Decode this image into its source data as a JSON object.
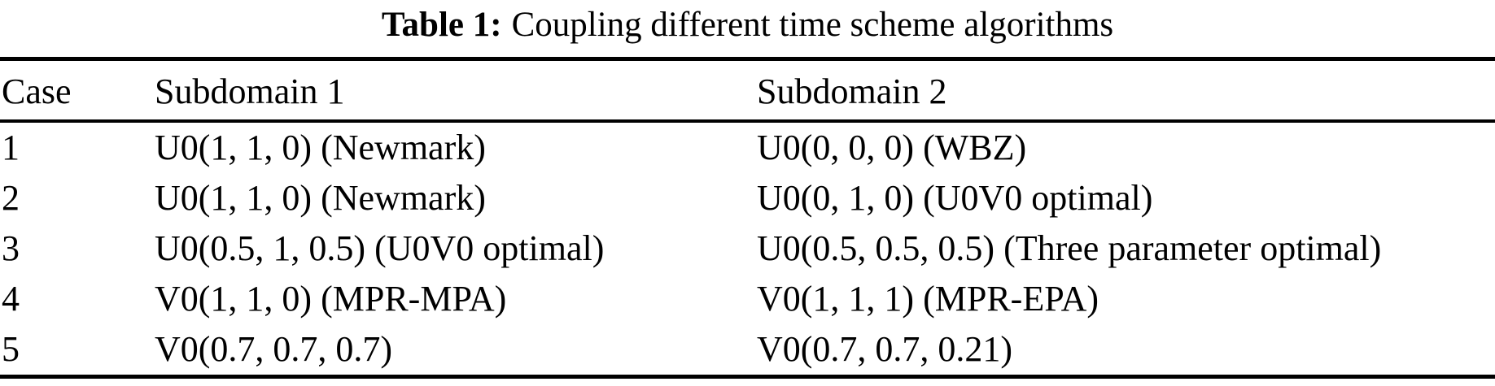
{
  "page": {
    "background_color": "#ffffff",
    "text_color": "#000000",
    "rule_color": "#000000"
  },
  "caption": {
    "label": "Table 1:",
    "text": "Coupling different time scheme algorithms"
  },
  "table": {
    "headers": [
      "Case",
      "Subdomain 1",
      "Subdomain 2"
    ],
    "rows": [
      [
        "1",
        "U0(1, 1, 0) (Newmark)",
        "U0(0, 0, 0) (WBZ)"
      ],
      [
        "2",
        "U0(1, 1, 0) (Newmark)",
        "U0(0, 1, 0) (U0V0 optimal)"
      ],
      [
        "3",
        "U0(0.5, 1, 0.5) (U0V0 optimal)",
        "U0(0.5, 0.5, 0.5) (Three parameter optimal)"
      ],
      [
        "4",
        "V0(1, 1, 0) (MPR-MPA)",
        "V0(1, 1, 1) (MPR-EPA)"
      ],
      [
        "5",
        "V0(0.7, 0.7, 0.7)",
        "V0(0.7, 0.7, 0.21)"
      ]
    ]
  }
}
